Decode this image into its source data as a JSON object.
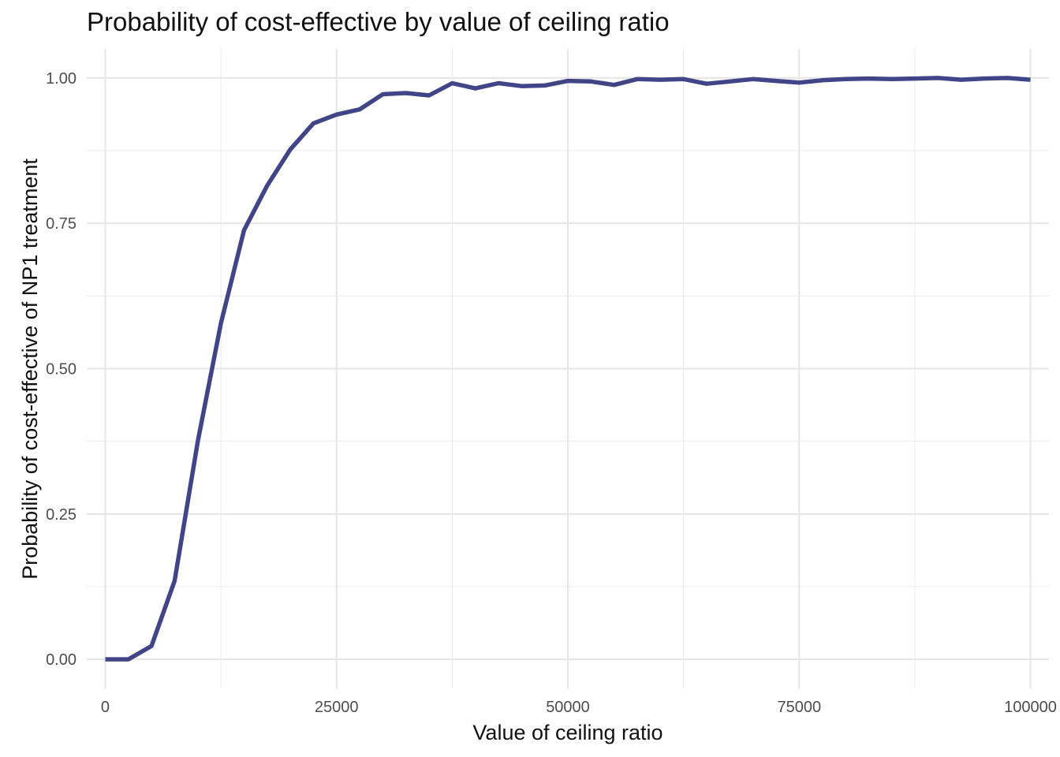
{
  "chart_data": {
    "type": "line",
    "title": "Probability of cost-effective by value of ceiling ratio",
    "xlabel": "Value of ceiling ratio",
    "ylabel": "Probability of cost-effective of NP1 treatment",
    "xlim": [
      -2000,
      102000
    ],
    "ylim": [
      -0.05,
      1.05
    ],
    "x_ticks": [
      0,
      25000,
      50000,
      75000,
      100000
    ],
    "x_tick_labels": [
      "0",
      "25000",
      "50000",
      "75000",
      "100000"
    ],
    "y_ticks": [
      0,
      0.25,
      0.5,
      0.75,
      1.0
    ],
    "y_tick_labels": [
      "0.00",
      "0.25",
      "0.50",
      "0.75",
      "1.00"
    ],
    "grid": true,
    "line_color": "#414487",
    "series": [
      {
        "x": [
          0,
          2500,
          5000,
          7500,
          10000,
          12500,
          15000,
          17500,
          20000,
          22500,
          25000,
          27500,
          30000,
          32500,
          35000,
          37500,
          40000,
          42500,
          45000,
          47500,
          50000,
          52500,
          55000,
          57500,
          60000,
          62500,
          65000,
          67500,
          70000,
          72500,
          75000,
          77500,
          80000,
          82500,
          85000,
          87500,
          90000,
          92500,
          95000,
          97500,
          100000
        ],
        "values": [
          0.0,
          0.0,
          0.023,
          0.135,
          0.375,
          0.578,
          0.738,
          0.815,
          0.877,
          0.922,
          0.937,
          0.946,
          0.972,
          0.974,
          0.97,
          0.991,
          0.982,
          0.991,
          0.986,
          0.987,
          0.995,
          0.994,
          0.988,
          0.998,
          0.997,
          0.998,
          0.99,
          0.994,
          0.998,
          0.995,
          0.992,
          0.996,
          0.998,
          0.999,
          0.998,
          0.999,
          1.0,
          0.997,
          0.999,
          1.0,
          0.997
        ]
      }
    ]
  }
}
